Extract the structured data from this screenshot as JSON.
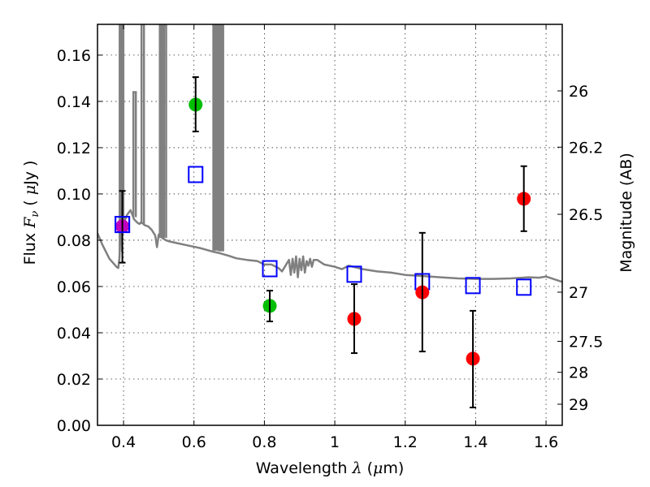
{
  "chart_data": {
    "type": "scatter",
    "title": "",
    "xlabel": "Wavelength  λ (μm)",
    "xlabel_parts": {
      "text": "Wavelength  ",
      "symbol": "λ",
      "unit_open": " (",
      "unit_mu": "μ",
      "unit_rest": "m)"
    },
    "ylabel": "Flux  Fν  ( μJy )",
    "ylabel_parts": {
      "text": "Flux  ",
      "symbol": "F",
      "subscript": "ν",
      "unit_open": "  ( ",
      "unit_mu": "μ",
      "unit_rest": "Jy )"
    },
    "y2label": "Magnitude (AB)",
    "xlim": [
      0.326,
      1.646
    ],
    "ylim": [
      0.0,
      0.1733
    ],
    "grid": true,
    "x_ticks": [
      {
        "value": 0.4,
        "label": "0.4"
      },
      {
        "value": 0.6,
        "label": "0.6"
      },
      {
        "value": 0.8,
        "label": "0.8"
      },
      {
        "value": 1.0,
        "label": "1"
      },
      {
        "value": 1.2,
        "label": "1.2"
      },
      {
        "value": 1.4,
        "label": "1.4"
      },
      {
        "value": 1.6,
        "label": "1.6"
      }
    ],
    "y_ticks": [
      {
        "value": 0.0,
        "label": "0.00"
      },
      {
        "value": 0.02,
        "label": "0.02"
      },
      {
        "value": 0.04,
        "label": "0.04"
      },
      {
        "value": 0.06,
        "label": "0.06"
      },
      {
        "value": 0.08,
        "label": "0.08"
      },
      {
        "value": 0.1,
        "label": "0.10"
      },
      {
        "value": 0.12,
        "label": "0.12"
      },
      {
        "value": 0.14,
        "label": "0.14"
      },
      {
        "value": 0.16,
        "label": "0.16"
      }
    ],
    "y2_ticks": [
      {
        "value": 26,
        "label": "26"
      },
      {
        "value": 26.2,
        "label": "26.2"
      },
      {
        "value": 26.5,
        "label": "26.5"
      },
      {
        "value": 27,
        "label": "27"
      },
      {
        "value": 27.5,
        "label": "27.5"
      },
      {
        "value": 28,
        "label": "28"
      },
      {
        "value": 29,
        "label": "29"
      }
    ],
    "ab_zeropoint_uJy": 23.9,
    "series": [
      {
        "name": "model spectrum",
        "kind": "line",
        "color": "#808080",
        "x": [
          0.326,
          0.34,
          0.36,
          0.38,
          0.385,
          0.388,
          0.39,
          0.392,
          0.395,
          0.4,
          0.405,
          0.41,
          0.415,
          0.42,
          0.425,
          0.43,
          0.44,
          0.445,
          0.45,
          0.46,
          0.47,
          0.48,
          0.49,
          0.495,
          0.5,
          0.51,
          0.52,
          0.53,
          0.55,
          0.58,
          0.62,
          0.65,
          0.67,
          0.7,
          0.72,
          0.75,
          0.78,
          0.8,
          0.82,
          0.84,
          0.85,
          0.86,
          0.87,
          0.875,
          0.88,
          0.885,
          0.89,
          0.895,
          0.9,
          0.905,
          0.91,
          0.915,
          0.92,
          0.925,
          0.93,
          0.935,
          0.94,
          0.95,
          0.97,
          1.0,
          1.02,
          1.04,
          1.08,
          1.12,
          1.16,
          1.2,
          1.25,
          1.3,
          1.35,
          1.4,
          1.45,
          1.5,
          1.55,
          1.58,
          1.6,
          1.646
        ],
        "y": [
          0.083,
          0.078,
          0.072,
          0.0685,
          0.068,
          0.072,
          0.078,
          0.083,
          0.087,
          0.09,
          0.089,
          0.091,
          0.092,
          0.093,
          0.091,
          0.089,
          0.0875,
          0.087,
          0.0878,
          0.0865,
          0.086,
          0.0845,
          0.082,
          0.077,
          0.0825,
          0.081,
          0.08,
          0.0795,
          0.0788,
          0.0778,
          0.0765,
          0.0752,
          0.0745,
          0.0732,
          0.0722,
          0.0715,
          0.071,
          0.0695,
          0.0695,
          0.068,
          0.0665,
          0.069,
          0.0715,
          0.065,
          0.072,
          0.066,
          0.073,
          0.064,
          0.072,
          0.067,
          0.073,
          0.066,
          0.071,
          0.069,
          0.072,
          0.0685,
          0.0715,
          0.0715,
          0.0695,
          0.0685,
          0.0675,
          0.069,
          0.0675,
          0.0665,
          0.066,
          0.065,
          0.0645,
          0.064,
          0.0635,
          0.0633,
          0.0633,
          0.0635,
          0.064,
          0.0638,
          0.0643,
          0.062
        ]
      },
      {
        "name": "emission lines",
        "kind": "spikes",
        "color": "#808080",
        "lines": [
          {
            "x": 0.3925,
            "peak": 0.1733,
            "base": 0.075
          },
          {
            "x": 0.396,
            "peak": 0.1733,
            "base": 0.085
          },
          {
            "x": 0.4315,
            "peak": 0.144,
            "base": 0.09
          },
          {
            "x": 0.4545,
            "peak": 0.1733,
            "base": 0.087
          },
          {
            "x": 0.5065,
            "peak": 0.1733,
            "base": 0.081
          },
          {
            "x": 0.5115,
            "peak": 0.1733,
            "base": 0.081
          },
          {
            "x": 0.5175,
            "peak": 0.1733,
            "base": 0.081
          },
          {
            "x": 0.6585,
            "peak": 0.1733,
            "base": 0.0755
          },
          {
            "x": 0.6635,
            "peak": 0.1733,
            "base": 0.0755
          },
          {
            "x": 0.6745,
            "peak": 0.1733,
            "base": 0.0752
          },
          {
            "x": 0.6795,
            "peak": 0.1733,
            "base": 0.0752
          }
        ]
      },
      {
        "name": "model photometry",
        "kind": "open-square",
        "color": "#0000ff",
        "x": [
          0.3966,
          0.6047,
          0.8153,
          1.0552,
          1.2486,
          1.3923,
          1.5369
        ],
        "y": [
          0.0868,
          0.1084,
          0.0677,
          0.0653,
          0.0621,
          0.0604,
          0.0597
        ]
      },
      {
        "name": "observed (magenta)",
        "kind": "filled-circle",
        "color": "#bf00bf",
        "x": [
          0.3966
        ],
        "y": [
          0.086
        ],
        "yerr_low": [
          0.0703
        ],
        "yerr_high": [
          0.1013
        ]
      },
      {
        "name": "observed (green)",
        "kind": "filled-circle",
        "color": "#00bf00",
        "x": [
          0.6047,
          0.8153
        ],
        "y": [
          0.1386,
          0.0516
        ],
        "yerr_low": [
          0.127,
          0.0449
        ],
        "yerr_high": [
          0.1505,
          0.0582
        ]
      },
      {
        "name": "observed (red)",
        "kind": "filled-circle",
        "color": "#ff0000",
        "x": [
          1.0552,
          1.2486,
          1.3923,
          1.5369
        ],
        "y": [
          0.046,
          0.0575,
          0.0288,
          0.0979
        ],
        "yerr_low": [
          0.0312,
          0.0319,
          0.0077,
          0.0839
        ],
        "yerr_high": [
          0.061,
          0.0832,
          0.0495,
          0.112
        ]
      }
    ]
  }
}
